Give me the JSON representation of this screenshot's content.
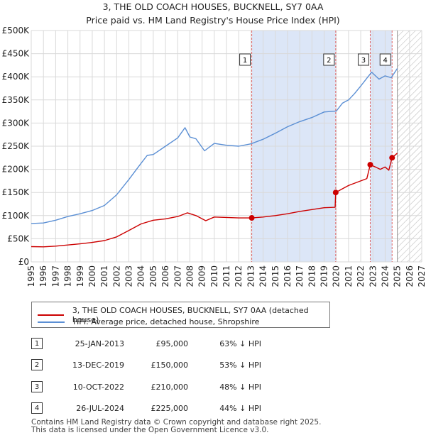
{
  "chart_data": {
    "type": "line",
    "title": "3, THE OLD COACH HOUSES, BUCKNELL, SY7 0AA",
    "subtitle": "Price paid vs. HM Land Registry's House Price Index (HPI)",
    "xlim": [
      1995,
      2027
    ],
    "ylim": [
      0,
      500000
    ],
    "x_ticks": [
      1995,
      1996,
      1997,
      1998,
      1999,
      2000,
      2001,
      2002,
      2003,
      2004,
      2005,
      2006,
      2007,
      2008,
      2009,
      2010,
      2011,
      2012,
      2013,
      2014,
      2015,
      2016,
      2017,
      2018,
      2019,
      2020,
      2021,
      2022,
      2023,
      2024,
      2025,
      2026,
      2027
    ],
    "y_ticks": [
      {
        "value": 0,
        "label": "£0"
      },
      {
        "value": 50000,
        "label": "£50K"
      },
      {
        "value": 100000,
        "label": "£100K"
      },
      {
        "value": 150000,
        "label": "£150K"
      },
      {
        "value": 200000,
        "label": "£200K"
      },
      {
        "value": 250000,
        "label": "£250K"
      },
      {
        "value": 300000,
        "label": "£300K"
      },
      {
        "value": 350000,
        "label": "£350K"
      },
      {
        "value": 400000,
        "label": "£400K"
      },
      {
        "value": 450000,
        "label": "£450K"
      },
      {
        "value": 500000,
        "label": "£500K"
      }
    ],
    "shaded_regions": [
      [
        2013.07,
        2019.95
      ],
      [
        2022.78,
        2024.57
      ]
    ],
    "future_hatch_start": 2025.0,
    "series": [
      {
        "name": "3, THE OLD COACH HOUSES, BUCKNELL, SY7 0AA (detached house)",
        "color": "#cc0000",
        "x": [
          1995.0,
          1996.0,
          1997.0,
          1998.0,
          1999.0,
          2000.0,
          2001.0,
          2002.0,
          2003.0,
          2004.0,
          2005.0,
          2006.0,
          2007.0,
          2007.8,
          2008.5,
          2009.3,
          2010.0,
          2011.0,
          2012.0,
          2013.07,
          2014.0,
          2015.0,
          2016.0,
          2017.0,
          2018.0,
          2019.0,
          2019.9,
          2019.95,
          2020.5,
          2021.0,
          2022.0,
          2022.5,
          2022.78,
          2023.2,
          2023.6,
          2024.0,
          2024.3,
          2024.57,
          2025.0
        ],
        "y": [
          33000,
          32500,
          34000,
          36500,
          39000,
          42000,
          46000,
          54000,
          68000,
          82000,
          90000,
          93000,
          98000,
          106000,
          100000,
          89000,
          97000,
          96000,
          95000,
          95000,
          97000,
          100000,
          104000,
          109000,
          113000,
          117000,
          118000,
          150000,
          158000,
          165000,
          175000,
          180000,
          210000,
          205000,
          200000,
          205000,
          198000,
          225000,
          235000
        ]
      },
      {
        "name": "HPI: Average price, detached house, Shropshire",
        "color": "#5b8fd4",
        "x": [
          1995.0,
          1996.0,
          1997.0,
          1998.0,
          1999.0,
          2000.0,
          2001.0,
          2002.0,
          2003.0,
          2004.0,
          2004.5,
          2005.0,
          2006.0,
          2007.0,
          2007.6,
          2008.0,
          2008.5,
          2009.2,
          2010.0,
          2011.0,
          2012.0,
          2013.0,
          2014.0,
          2015.0,
          2016.0,
          2017.0,
          2018.0,
          2019.0,
          2020.0,
          2020.5,
          2021.0,
          2021.5,
          2022.0,
          2022.5,
          2022.9,
          2023.5,
          2024.0,
          2024.5,
          2025.0
        ],
        "y": [
          83000,
          84000,
          90000,
          98000,
          104000,
          111000,
          122000,
          145000,
          178000,
          213000,
          230000,
          232000,
          250000,
          268000,
          290000,
          270000,
          266000,
          240000,
          256000,
          252000,
          250000,
          255000,
          265000,
          278000,
          292000,
          303000,
          312000,
          324000,
          326000,
          343000,
          350000,
          364000,
          380000,
          397000,
          410000,
          395000,
          402000,
          398000,
          418000
        ]
      }
    ],
    "markers": [
      {
        "label": "1",
        "x": 2013.07,
        "y": 95000
      },
      {
        "label": "2",
        "x": 2019.95,
        "y": 150000
      },
      {
        "label": "3",
        "x": 2022.78,
        "y": 210000
      },
      {
        "label": "4",
        "x": 2024.57,
        "y": 225000
      }
    ]
  },
  "legend": {
    "property_label": "3, THE OLD COACH HOUSES, BUCKNELL, SY7 0AA (detached house)",
    "hpi_label": "HPI: Average price, detached house, Shropshire"
  },
  "transactions": [
    {
      "num": "1",
      "date": "25-JAN-2013",
      "price": "£95,000",
      "hpi": "63% ↓ HPI"
    },
    {
      "num": "2",
      "date": "13-DEC-2019",
      "price": "£150,000",
      "hpi": "53% ↓ HPI"
    },
    {
      "num": "3",
      "date": "10-OCT-2022",
      "price": "£210,000",
      "hpi": "48% ↓ HPI"
    },
    {
      "num": "4",
      "date": "26-JUL-2024",
      "price": "£225,000",
      "hpi": "44% ↓ HPI"
    }
  ],
  "footer": {
    "line1": "Contains HM Land Registry data © Crown copyright and database right 2025.",
    "line2": "This data is licensed under the Open Government Licence v3.0."
  },
  "colors": {
    "property": "#cc0000",
    "hpi": "#5b8fd4",
    "shade": "#dce6f7",
    "grid": "#d9d9d9"
  }
}
